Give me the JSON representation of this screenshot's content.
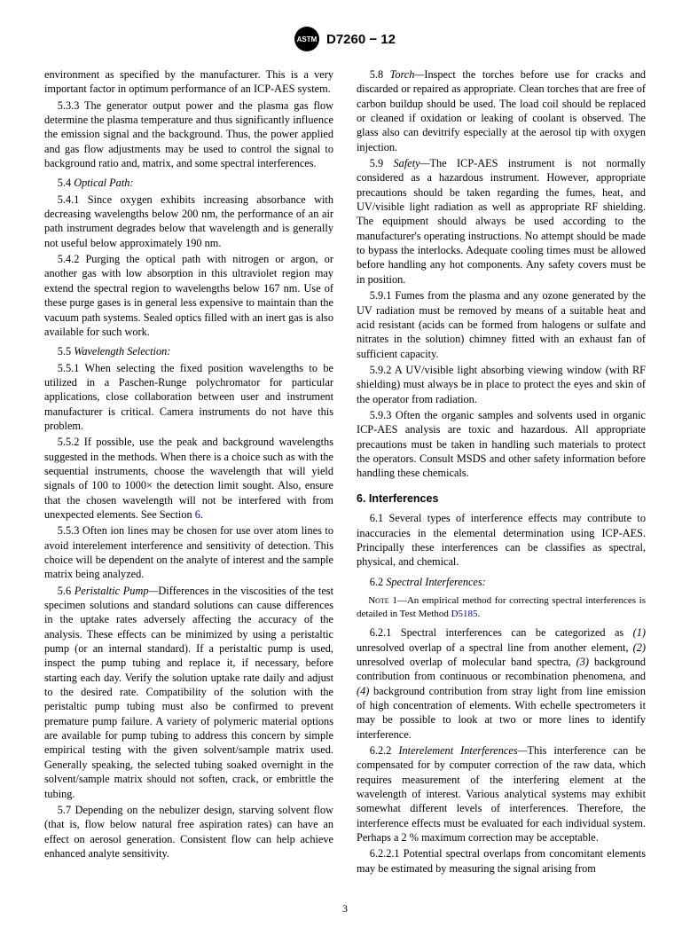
{
  "header": {
    "logo_text": "ASTM",
    "doc_number": "D7260 − 12"
  },
  "col": {
    "p1": "environment as specified by the manufacturer. This is a very important factor in optimum performance of an ICP-AES system.",
    "p2": "5.3.3 The generator output power and the plasma gas flow determine the plasma temperature and thus significantly influence the emission signal and the background. Thus, the power applied and gas flow adjustments may be used to control the signal to background ratio and, matrix, and some spectral interferences.",
    "s54_num": "5.4 ",
    "s54_title": "Optical Path:",
    "p541": "5.4.1 Since oxygen exhibits increasing absorbance with decreasing wavelengths below 200 nm, the performance of an air path instrument degrades below that wavelength and is generally not useful below approximately 190 nm.",
    "p542": "5.4.2 Purging the optical path with nitrogen or argon, or another gas with low absorption in this ultraviolet region may extend the spectral region to wavelengths below 167 nm. Use of these purge gases is in general less expensive to maintain than the vacuum path systems. Sealed optics filled with an inert gas is also available for such work.",
    "s55_num": "5.5 ",
    "s55_title": "Wavelength Selection:",
    "p551": "5.5.1 When selecting the fixed position wavelengths to be utilized in a Paschen-Runge polychromator for particular applications, close collaboration between user and instrument manufacturer is critical. Camera instruments do not have this problem.",
    "p552a": "5.5.2 If possible, use the peak and background wavelengths suggested in the methods. When there is a choice such as with the sequential instruments, choose the wavelength that will yield signals of 100 to 1000× the detection limit sought. Also, ensure that the chosen wavelength will not be interfered with from unexpected elements. See Section ",
    "p552link": "6",
    "p552b": ".",
    "p553": "5.5.3 Often ion lines may be chosen for use over atom lines to avoid interelement interference and sensitivity of detection. This choice will be dependent on the analyte of interest and the sample matrix being analyzed.",
    "s56_num": "5.6 ",
    "s56_title": "Peristaltic Pump—",
    "p56": "Differences in the viscosities of the test specimen solutions and standard solutions can cause differences in the uptake rates adversely affecting the accuracy of the analysis. These effects can be minimized by using a peristaltic pump (or an internal standard). If a peristaltic pump is used, inspect the pump tubing and replace it, if necessary, before starting each day. Verify the solution uptake rate daily and adjust to the desired rate. Compatibility of the solution with the peristaltic pump tubing must also be confirmed to prevent premature pump failure. A variety of polymeric material options are available for pump tubing to address this concern by simple empirical testing with the given solvent/sample matrix used. Generally speaking, the selected tubing soaked overnight in the solvent/sample matrix should not soften, crack, or embrittle the tubing.",
    "p57": "5.7 Depending on the nebulizer design, starving solvent flow (that is, flow below natural free aspiration rates) can have an effect on aerosol generation. Consistent flow can help achieve enhanced analyte sensitivity.",
    "s58_num": "5.8 ",
    "s58_title": "Torch—",
    "p58": "Inspect the torches before use for cracks and discarded or repaired as appropriate. Clean torches that are free of carbon buildup should be used. The load coil should be replaced or cleaned if oxidation or leaking of coolant is observed. The glass also can devitrify especially at the aerosol tip with oxygen injection.",
    "s59_num": "5.9 ",
    "s59_title": "Safety—",
    "p59": "The ICP-AES instrument is not normally considered as a hazardous instrument. However, appropriate precautions should be taken regarding the fumes, heat, and UV/visible light radiation as well as appropriate RF shielding. The equipment should always be used according to the manufacturer's operating instructions. No attempt should be made to bypass the interlocks. Adequate cooling times must be allowed before handling any hot components. Any safety covers must be in position.",
    "p591": "5.9.1 Fumes from the plasma and any ozone generated by the UV radiation must be removed by means of a suitable heat and acid resistant (acids can be formed from halogens or sulfate and nitrates in the solution) chimney fitted with an exhaust fan of sufficient capacity.",
    "p592": "5.9.2 A UV/visible light absorbing viewing window (with RF shielding) must always be in place to protect the eyes and skin of the operator from radiation.",
    "p593": "5.9.3 Often the organic samples and solvents used in organic ICP-AES analysis are toxic and hazardous. All appropriate precautions must be taken in handling such materials to protect the operators. Consult MSDS and other safety information before handling these chemicals.",
    "sec6": "6. Interferences",
    "p61": "6.1 Several types of interference effects may contribute to inaccuracies in the elemental determination using ICP-AES. Principally these interferences can be classifies as spectral, physical, and chemical.",
    "s62_num": "6.2 ",
    "s62_title": "Spectral Interferences:",
    "note1_label": "Note",
    "note1a": " 1—An empirical method for correcting spectral interferences is detailed in Test Method ",
    "note1link": "D5185",
    "note1b": ".",
    "p621a": "6.2.1 Spectral interferences can be categorized as ",
    "p621_1": "(1)",
    "p621b": " unresolved overlap of a spectral line from another element, ",
    "p621_2": "(2)",
    "p621c": " unresolved overlap of molecular band spectra, ",
    "p621_3": "(3)",
    "p621d": " background contribution from continuous or recombination phenomena, and ",
    "p621_4": "(4)",
    "p621e": " background contribution from stray light from line emission of high concentration of elements. With echelle spectrometers it may be possible to look at two or more lines to identify interference.",
    "s622_num": "6.2.2 ",
    "s622_title": "Interelement Interferences—",
    "p622": "This interference can be compensated for by computer correction of the raw data, which requires measurement of the interfering element at the wavelength of interest. Various analytical systems may exhibit somewhat different levels of interferences. Therefore, the interference effects must be evaluated for each individual system. Perhaps a 2 % maximum correction may be acceptable.",
    "p6221": "6.2.2.1 Potential spectral overlaps from concomitant elements may be estimated by measuring the signal arising from"
  },
  "page_number": "3"
}
